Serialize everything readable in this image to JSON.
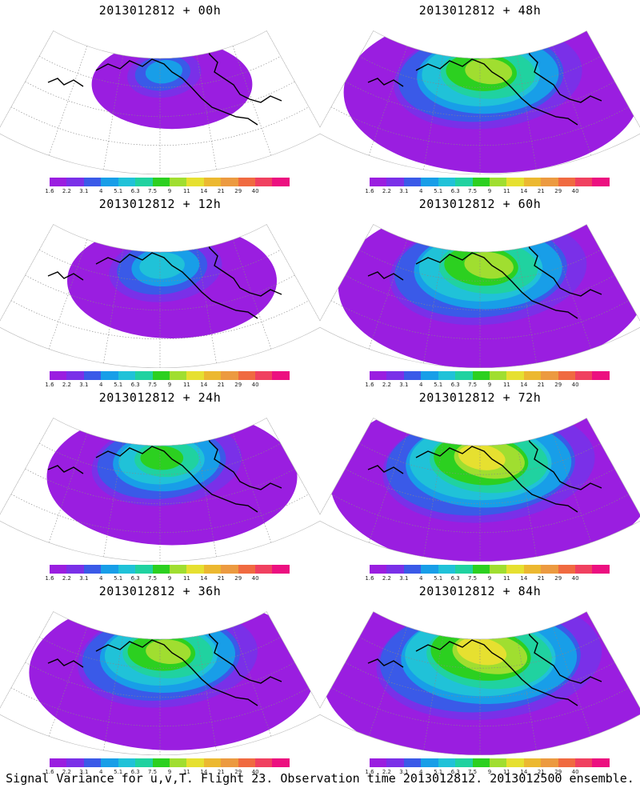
{
  "caption": "Signal Variance for u,v,T. Flight 23. Observation time 2013012812. 2013012500 ensemble.",
  "colorbar": {
    "labels": [
      "1.6",
      "2.2",
      "3.1",
      "4",
      "5.1",
      "6.3",
      "7.5",
      "9",
      "11",
      "14",
      "21",
      "29",
      "40"
    ],
    "colors": [
      "#9a1ee0",
      "#7a30e8",
      "#3a5ae8",
      "#189ee8",
      "#20c2d8",
      "#20d2a0",
      "#2cd020",
      "#a0de30",
      "#e6e030",
      "#ecb830",
      "#ec9a40",
      "#f06a40",
      "#f04060",
      "#ec1080"
    ]
  },
  "panels": [
    {
      "title": "2013012812 + 00h",
      "level": 0.12
    },
    {
      "title": "2013012812 + 12h",
      "level": 0.3
    },
    {
      "title": "2013012812 + 24h",
      "level": 0.45
    },
    {
      "title": "2013012812 + 36h",
      "level": 0.58
    },
    {
      "title": "2013012812 + 48h",
      "level": 0.62
    },
    {
      "title": "2013012812 + 60h",
      "level": 0.66
    },
    {
      "title": "2013012812 + 72h",
      "level": 0.72
    },
    {
      "title": "2013012812 + 84h",
      "level": 0.78
    }
  ]
}
